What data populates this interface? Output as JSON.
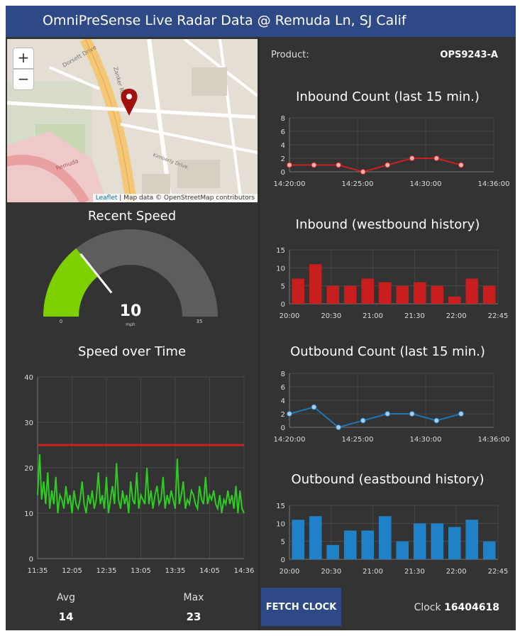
{
  "title": "OmniPreSense Live Radar Data @ Remuda Ln, SJ Calif",
  "map": {
    "zoom_in": "+",
    "zoom_out": "−",
    "attribution_link": "Leaflet",
    "attribution_text": " | Map data © OpenStreetMap contributors",
    "street_labels": [
      "Dorsett Drive",
      "Zanker Road",
      "Remuda",
      "Kimberly Drive"
    ],
    "marker_icon": "map-pin-icon"
  },
  "product": {
    "label": "Product:",
    "value": "OPS9243-A"
  },
  "gauge": {
    "title": "Recent Speed",
    "value": 10,
    "min": 0,
    "max": 35,
    "min_label": "0",
    "max_label": "35",
    "value_label": "10",
    "units": "mph",
    "fill_color": "#7ed100",
    "track_color": "#5d5d5d"
  },
  "stats": {
    "avg_label": "Avg",
    "avg_value": "14",
    "max_label": "Max",
    "max_value": "23"
  },
  "fetch_button": "FETCH CLOCK",
  "clock": {
    "label": "Clock ",
    "value": "16404618"
  },
  "chart_data": [
    {
      "type": "line",
      "title": "Speed over Time",
      "x_ticks": [
        "11:35",
        "12:05",
        "12:35",
        "13:05",
        "13:35",
        "14:05",
        "14:36"
      ],
      "y_ticks": [
        "0",
        "10",
        "20",
        "30",
        "40"
      ],
      "ylim": [
        0,
        40
      ],
      "threshold": 25,
      "threshold_color": "#cc2020",
      "series_color": "#2ecc22",
      "values": [
        14,
        23,
        13,
        17,
        12,
        19,
        11,
        15,
        12,
        18,
        10,
        14,
        13,
        11,
        16,
        12,
        14,
        10,
        15,
        12,
        11,
        13,
        17,
        12,
        10,
        14,
        12,
        15,
        11,
        13,
        19,
        12,
        14,
        11,
        18,
        10,
        13,
        16,
        12,
        21,
        13,
        11,
        15,
        12,
        14,
        10,
        17,
        13,
        12,
        19,
        11,
        14,
        13,
        12,
        20,
        12,
        15,
        11,
        14,
        16,
        12,
        13,
        18,
        11,
        14,
        12,
        15,
        13,
        11,
        22,
        12,
        14,
        17,
        11,
        13,
        12,
        15,
        14,
        12,
        11,
        16,
        13,
        12,
        18,
        12,
        14,
        13,
        15,
        12,
        11,
        14,
        10,
        13,
        12,
        15,
        12,
        14,
        11,
        16,
        10,
        15,
        11,
        10
      ]
    },
    {
      "type": "line",
      "title": "Inbound Count (last 15 min.)",
      "x_ticks": [
        "14:20:00",
        "14:25:00",
        "14:30:00",
        "14:36:00"
      ],
      "y_ticks": [
        "0",
        "2",
        "4",
        "6",
        "8"
      ],
      "ylim": [
        0,
        8
      ],
      "series_color": "#cc2020",
      "point_color": "#f0b0b0",
      "values": [
        1,
        1,
        1,
        0,
        1,
        2,
        2,
        1
      ]
    },
    {
      "type": "bar",
      "title": "Inbound (westbound history)",
      "x_ticks": [
        "20:00",
        "20:30",
        "21:00",
        "21:30",
        "22:00",
        "22:45"
      ],
      "y_ticks": [
        "0",
        "5",
        "10",
        "15"
      ],
      "ylim": [
        0,
        15
      ],
      "bar_color": "#c81e1e",
      "values": [
        7,
        11,
        5,
        5,
        7,
        6,
        5,
        6,
        5,
        2,
        7,
        5
      ]
    },
    {
      "type": "line",
      "title": "Outbound Count (last 15 min.)",
      "x_ticks": [
        "14:20:00",
        "14:25:00",
        "14:30:00",
        "14:36:00"
      ],
      "y_ticks": [
        "0",
        "2",
        "4",
        "6",
        "8"
      ],
      "ylim": [
        0,
        8
      ],
      "series_color": "#1f77b4",
      "point_color": "#a9cbe8",
      "values": [
        2,
        3,
        0,
        1,
        2,
        2,
        1,
        2
      ]
    },
    {
      "type": "bar",
      "title": "Outbound (eastbound history)",
      "x_ticks": [
        "20:00",
        "20:30",
        "21:00",
        "21:30",
        "22:00",
        "22:45"
      ],
      "y_ticks": [
        "0",
        "5",
        "10",
        "15"
      ],
      "ylim": [
        0,
        15
      ],
      "bar_color": "#1f82c8",
      "values": [
        11,
        12,
        4,
        8,
        8,
        12,
        5,
        10,
        10,
        9,
        11,
        5
      ]
    }
  ]
}
